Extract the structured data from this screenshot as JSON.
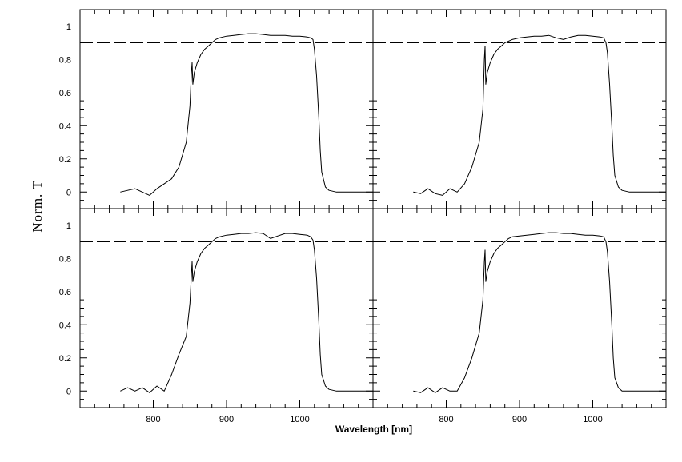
{
  "chart_data": {
    "type": "line",
    "layout": "2x2 grid of panels with shared axes",
    "xlabel": "Wavelength [nm]",
    "ylabel": "Norm. T",
    "xlim": [
      700,
      1100
    ],
    "ylim": [
      -0.1,
      1.1
    ],
    "x_ticks": [
      800,
      900,
      1000
    ],
    "x_tick_labels": [
      "800",
      "900",
      "1000"
    ],
    "y_ticks": [
      0,
      0.2,
      0.4,
      0.6,
      0.8,
      1
    ],
    "y_tick_labels": [
      "0",
      "0.2",
      "0.4",
      "0.6",
      "0.8",
      "1"
    ],
    "grid": false,
    "legend": "none",
    "reference_line": {
      "y": 0.9,
      "style": "dashed"
    },
    "line_color": "#000000",
    "panels": [
      {
        "position": "top-left",
        "x": [
          755,
          765,
          775,
          785,
          795,
          805,
          815,
          825,
          835,
          845,
          850,
          852,
          853,
          854,
          856,
          860,
          865,
          870,
          875,
          880,
          885,
          890,
          900,
          910,
          920,
          930,
          940,
          950,
          960,
          970,
          980,
          990,
          1000,
          1010,
          1015,
          1018,
          1020,
          1023,
          1026,
          1028,
          1030,
          1035,
          1040,
          1050,
          1060,
          1070,
          1080,
          1090,
          1100
        ],
        "y": [
          0.0,
          0.01,
          0.02,
          0.0,
          -0.02,
          0.02,
          0.05,
          0.08,
          0.15,
          0.3,
          0.52,
          0.72,
          0.78,
          0.65,
          0.72,
          0.78,
          0.83,
          0.86,
          0.88,
          0.9,
          0.92,
          0.93,
          0.94,
          0.945,
          0.95,
          0.955,
          0.955,
          0.95,
          0.945,
          0.945,
          0.945,
          0.94,
          0.94,
          0.935,
          0.93,
          0.92,
          0.86,
          0.7,
          0.45,
          0.25,
          0.12,
          0.03,
          0.01,
          0.0,
          0.0,
          0.0,
          0.0,
          0.0,
          0.0
        ]
      },
      {
        "position": "top-right",
        "x": [
          755,
          765,
          775,
          785,
          795,
          805,
          815,
          825,
          835,
          845,
          850,
          852,
          853,
          854,
          856,
          860,
          865,
          870,
          875,
          880,
          885,
          890,
          900,
          910,
          920,
          930,
          940,
          950,
          960,
          970,
          980,
          990,
          1000,
          1010,
          1015,
          1018,
          1020,
          1023,
          1026,
          1028,
          1030,
          1035,
          1040,
          1050,
          1060,
          1070,
          1080,
          1090,
          1100
        ],
        "y": [
          0.0,
          -0.01,
          0.02,
          -0.01,
          -0.02,
          0.02,
          0.0,
          0.05,
          0.15,
          0.3,
          0.5,
          0.8,
          0.88,
          0.65,
          0.72,
          0.78,
          0.83,
          0.86,
          0.88,
          0.9,
          0.91,
          0.92,
          0.93,
          0.935,
          0.94,
          0.94,
          0.945,
          0.93,
          0.92,
          0.935,
          0.945,
          0.945,
          0.94,
          0.935,
          0.93,
          0.9,
          0.84,
          0.65,
          0.4,
          0.22,
          0.1,
          0.03,
          0.01,
          0.0,
          0.0,
          0.0,
          0.0,
          0.0,
          0.0
        ]
      },
      {
        "position": "bottom-left",
        "x": [
          755,
          765,
          775,
          785,
          795,
          805,
          815,
          825,
          835,
          845,
          850,
          852,
          853,
          854,
          856,
          860,
          865,
          870,
          875,
          880,
          885,
          890,
          900,
          910,
          920,
          930,
          940,
          950,
          960,
          970,
          980,
          990,
          1000,
          1010,
          1015,
          1018,
          1020,
          1023,
          1026,
          1028,
          1030,
          1035,
          1040,
          1050,
          1060,
          1070,
          1080,
          1090,
          1100
        ],
        "y": [
          0.0,
          0.02,
          0.0,
          0.02,
          -0.01,
          0.03,
          0.0,
          0.1,
          0.22,
          0.33,
          0.53,
          0.7,
          0.78,
          0.66,
          0.72,
          0.78,
          0.83,
          0.86,
          0.88,
          0.9,
          0.92,
          0.93,
          0.94,
          0.945,
          0.95,
          0.95,
          0.955,
          0.95,
          0.92,
          0.935,
          0.95,
          0.95,
          0.945,
          0.94,
          0.93,
          0.91,
          0.85,
          0.68,
          0.42,
          0.22,
          0.1,
          0.03,
          0.01,
          0.0,
          0.0,
          0.0,
          0.0,
          0.0,
          0.0
        ]
      },
      {
        "position": "bottom-right",
        "x": [
          755,
          765,
          775,
          785,
          795,
          805,
          815,
          825,
          835,
          845,
          850,
          852,
          853,
          854,
          856,
          860,
          865,
          870,
          875,
          880,
          885,
          890,
          900,
          910,
          920,
          930,
          940,
          950,
          960,
          970,
          980,
          990,
          1000,
          1010,
          1015,
          1018,
          1020,
          1023,
          1026,
          1028,
          1030,
          1035,
          1040,
          1050,
          1060,
          1070,
          1080,
          1090,
          1100
        ],
        "y": [
          0.0,
          -0.01,
          0.02,
          -0.01,
          0.02,
          0.0,
          0.0,
          0.08,
          0.2,
          0.35,
          0.55,
          0.78,
          0.85,
          0.66,
          0.72,
          0.78,
          0.83,
          0.86,
          0.88,
          0.9,
          0.92,
          0.93,
          0.935,
          0.94,
          0.945,
          0.95,
          0.955,
          0.955,
          0.95,
          0.95,
          0.945,
          0.94,
          0.94,
          0.935,
          0.93,
          0.9,
          0.84,
          0.66,
          0.4,
          0.2,
          0.08,
          0.02,
          0.0,
          0.0,
          0.0,
          0.0,
          0.0,
          0.0,
          0.0
        ]
      }
    ]
  }
}
